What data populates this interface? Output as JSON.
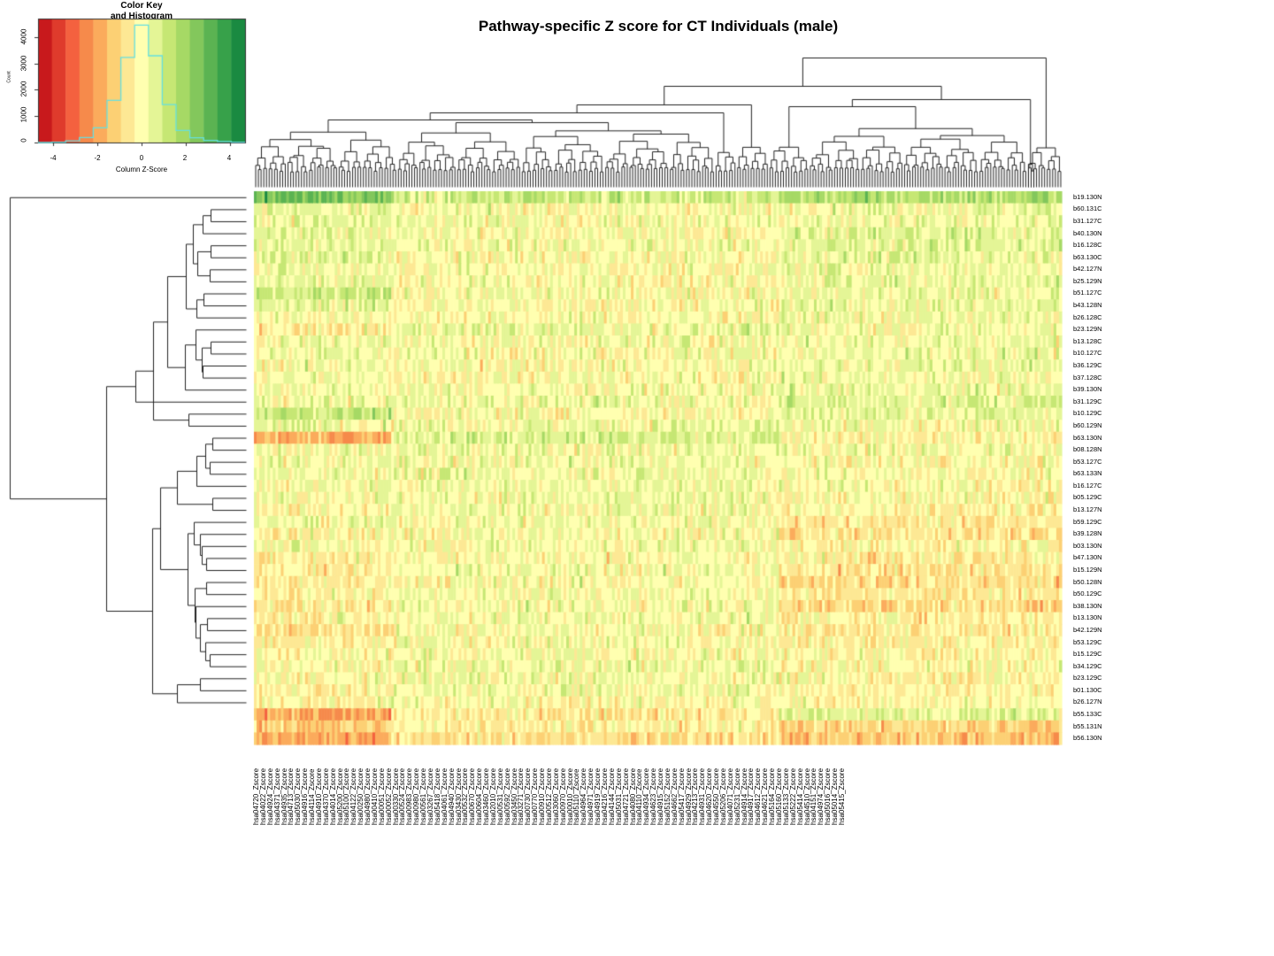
{
  "title": "Pathway-specific Z score for CT Individuals (male)",
  "color_key": {
    "title_line1": "Color Key",
    "title_line2": "and Histogram",
    "xlabel": "Column Z-Score",
    "ylabel": "Count",
    "xticks": [
      "-4",
      "-2",
      "0",
      "2",
      "4"
    ],
    "yticks": [
      "0",
      "1000",
      "2000",
      "3000",
      "4000"
    ],
    "colors": [
      "#c8191c",
      "#df3b2c",
      "#f4613f",
      "#f68a4b",
      "#fbab5c",
      "#fcd074",
      "#fde894",
      "#ffffb0",
      "#e4f596",
      "#c6e774",
      "#a6d965",
      "#83c75c",
      "#5bb352",
      "#37a14a",
      "#1a8a41"
    ],
    "histogram_color": "#66e0e0"
  },
  "chart_data": {
    "type": "heatmap",
    "title": "Pathway-specific Z score for CT Individuals (male)",
    "xlabel": "",
    "ylabel": "",
    "value_label": "Column Z-Score",
    "value_range": [
      -4.7,
      4.7
    ],
    "color_scale": "RdYlGn (red = negative, green = positive), 15 bins",
    "row_dendrogram": true,
    "col_dendrogram": true,
    "histogram": {
      "bin_edges": [
        -4.7,
        -4.07,
        -3.45,
        -2.82,
        -2.19,
        -1.57,
        -0.94,
        -0.31,
        0.31,
        0.94,
        1.57,
        2.19,
        2.82,
        3.45,
        4.07,
        4.7
      ],
      "counts": [
        0,
        10,
        60,
        190,
        560,
        1600,
        3230,
        4450,
        3290,
        1440,
        460,
        180,
        80,
        40,
        10
      ],
      "ylim": [
        0,
        4700
      ]
    },
    "rows": [
      "b19.130N",
      "b60.131C",
      "b31.127C",
      "b40.130N",
      "b16.128C",
      "b63.130C",
      "b42.127N",
      "b25.129N",
      "b51.127C",
      "b43.128N",
      "b26.128C",
      "b23.129N",
      "b13.128C",
      "b10.127C",
      "b36.129C",
      "b37.128C",
      "b39.130N",
      "b31.129C",
      "b10.129C",
      "b60.129N",
      "b63.130N",
      "b08.128N",
      "b53.127C",
      "b63.133N",
      "b16.127C",
      "b05.129C",
      "b13.127N",
      "b59.129C",
      "b39.128N",
      "b03.130N",
      "b47.130N",
      "b15.129N",
      "b50.128N",
      "b50.129C",
      "b38.130N",
      "b13.130N",
      "b42.129N",
      "b53.129C",
      "b15.129C",
      "b34.129C",
      "b23.129C",
      "b01.130C",
      "b26.127N",
      "b55.133C",
      "b55.131N",
      "b56.130N"
    ],
    "row_profiles_note": "approximate mean z per row in 3 column regions [left, middle, right]",
    "row_profiles": [
      [
        2.6,
        1.0,
        1.6
      ],
      [
        0.5,
        0.0,
        0.4
      ],
      [
        0.4,
        0.1,
        0.3
      ],
      [
        0.5,
        0.0,
        0.6
      ],
      [
        0.4,
        0.2,
        0.6
      ],
      [
        0.5,
        0.0,
        0.5
      ],
      [
        0.2,
        0.0,
        0.3
      ],
      [
        0.4,
        0.0,
        0.4
      ],
      [
        0.9,
        0.1,
        0.3
      ],
      [
        0.4,
        0.0,
        0.4
      ],
      [
        0.1,
        0.0,
        0.2
      ],
      [
        -0.5,
        0.4,
        0.2
      ],
      [
        0.2,
        0.1,
        0.3
      ],
      [
        0.3,
        0.1,
        0.2
      ],
      [
        0.1,
        0.0,
        0.3
      ],
      [
        0.1,
        0.0,
        0.2
      ],
      [
        0.2,
        0.1,
        0.3
      ],
      [
        0.2,
        0.3,
        0.6
      ],
      [
        1.3,
        0.0,
        0.5
      ],
      [
        0.4,
        0.3,
        0.1
      ],
      [
        -1.8,
        0.8,
        -0.2
      ],
      [
        0.3,
        0.2,
        0.2
      ],
      [
        0.2,
        0.2,
        -0.1
      ],
      [
        0.3,
        0.3,
        0.0
      ],
      [
        0.1,
        0.3,
        0.0
      ],
      [
        0.2,
        0.2,
        -0.1
      ],
      [
        -0.1,
        0.2,
        -0.2
      ],
      [
        0.2,
        0.2,
        -0.5
      ],
      [
        -0.2,
        0.0,
        -0.6
      ],
      [
        0.1,
        0.2,
        -0.2
      ],
      [
        -0.3,
        0.0,
        -0.3
      ],
      [
        -0.4,
        0.1,
        -0.6
      ],
      [
        -0.5,
        0.0,
        -0.8
      ],
      [
        -0.2,
        0.2,
        -0.5
      ],
      [
        -0.6,
        0.1,
        -0.9
      ],
      [
        -0.2,
        0.2,
        -0.3
      ],
      [
        -0.7,
        0.1,
        -0.4
      ],
      [
        -0.5,
        0.1,
        -0.3
      ],
      [
        -0.1,
        0.1,
        -0.2
      ],
      [
        0.0,
        0.3,
        -0.1
      ],
      [
        -0.1,
        0.2,
        -0.2
      ],
      [
        -0.3,
        0.2,
        -0.2
      ],
      [
        -0.2,
        0.0,
        -0.2
      ],
      [
        -2.0,
        -0.5,
        0.6
      ],
      [
        -1.2,
        -0.3,
        -1.0
      ],
      [
        -1.8,
        -0.8,
        -1.4
      ]
    ],
    "n_columns": 300,
    "columns_labeled": [
      "hsa04720_Zscore",
      "hsa04022_Zscore",
      "hsa04924_Zscore",
      "hsa04371_Zscore",
      "hsa04935_Zscore",
      "hsa04713_Zscore",
      "hsa05030_Zscore",
      "hsa04916_Zscore",
      "hsa04114_Zscore",
      "hsa04910_Zscore",
      "hsa04370_Zscore",
      "hsa04014_Zscore",
      "hsa05200_Zscore",
      "hsa05100_Zscore",
      "hsa04122_Zscore",
      "hsa00250_Zscore",
      "hsa04980_Zscore",
      "hsa00410_Zscore",
      "hsa00051_Zscore",
      "hsa00052_Zscore",
      "hsa00330_Zscore",
      "hsa00524_Zscore",
      "hsa00983_Zscore",
      "hsa00980_Zscore",
      "hsa00561_Zscore",
      "hsa03267_Zscore",
      "hsa05418_Zscore",
      "hsa04061_Zscore",
      "hsa04940_Zscore",
      "hsa03430_Zscore",
      "hsa00532_Zscore",
      "hsa00670_Zscore",
      "hsa00604_Zscore",
      "hsa03460_Zscore",
      "hsa02010_Zscore",
      "hsa00531_Zscore",
      "hsa00592_Zscore",
      "hsa03450_Zscore",
      "hsa03271_Zscore",
      "hsa00730_Zscore",
      "hsa00770_Zscore",
      "hsa00910_Zscore",
      "hsa00512_Zscore",
      "hsa03060_Zscore",
      "hsa00970_Zscore",
      "hsa00010_Zscore",
      "hsa05110_Zscore",
      "hsa04964_Zscore",
      "hsa04971_Zscore",
      "hsa04919_Zscore",
      "hsa04216_Zscore",
      "hsa04144_Zscore",
      "hsa05031_Zscore",
      "hsa04721_Zscore",
      "hsa04080_Zscore",
      "hsa04110_Zscore",
      "hsa04934_Zscore",
      "hsa04623_Zscore",
      "hsa04915_Zscore",
      "hsa05152_Zscore",
      "hsa04662_Zscore",
      "hsa05417_Zscore",
      "hsa04929_Zscore",
      "hsa04213_Zscore",
      "hsa04931_Zscore",
      "hsa04620_Zscore",
      "hsa04550_Zscore",
      "hsa05206_Zscore",
      "hsa04071_Zscore",
      "hsa05231_Zscore",
      "hsa04914_Zscore",
      "hsa04917_Zscore",
      "hsa04612_Zscore",
      "hsa04621_Zscore",
      "hsa05164_Zscore",
      "hsa05160_Zscore",
      "hsa05133_Zscore",
      "hsa05222_Zscore",
      "hsa05414_Zscore",
      "hsa04510_Zscore",
      "hsa04151_Zscore",
      "hsa04974_Zscore",
      "hsa05016_Zscore",
      "hsa05014_Zscore",
      "hsa05415_Zscore"
    ]
  }
}
